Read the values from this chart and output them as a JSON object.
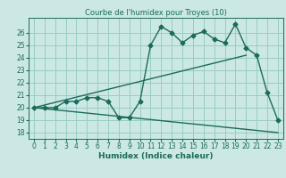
{
  "title": "Courbe de l'humidex pour Troyes (10)",
  "xlabel": "Humidex (Indice chaleur)",
  "background_color": "#cce8e4",
  "grid_color": "#99ccc6",
  "line_color": "#1a6b5a",
  "xlim": [
    -0.5,
    23.5
  ],
  "ylim": [
    17.5,
    27.2
  ],
  "xticks": [
    0,
    1,
    2,
    3,
    4,
    5,
    6,
    7,
    8,
    9,
    10,
    11,
    12,
    13,
    14,
    15,
    16,
    17,
    18,
    19,
    20,
    21,
    22,
    23
  ],
  "yticks": [
    18,
    19,
    20,
    21,
    22,
    23,
    24,
    25,
    26
  ],
  "curve1_x": [
    0,
    1,
    2,
    3,
    4,
    5,
    6,
    7,
    8,
    9,
    10,
    11,
    12,
    13,
    14,
    15,
    16,
    17,
    18,
    19,
    20,
    21,
    22,
    23
  ],
  "curve1_y": [
    20,
    20,
    20,
    20.5,
    20.5,
    20.8,
    20.8,
    20.5,
    19.2,
    19.2,
    20.5,
    25.0,
    26.5,
    26.0,
    25.2,
    25.8,
    26.1,
    25.5,
    25.2,
    26.7,
    24.8,
    24.2,
    21.2,
    19.0
  ],
  "curve2_x": [
    0,
    20
  ],
  "curve2_y": [
    20,
    24.2
  ],
  "curve3_x": [
    0,
    23
  ],
  "curve3_y": [
    20,
    18.0
  ],
  "markersize": 2.5,
  "linewidth": 1.0,
  "title_fontsize": 6.0,
  "xlabel_fontsize": 6.5,
  "tick_fontsize": 5.5
}
